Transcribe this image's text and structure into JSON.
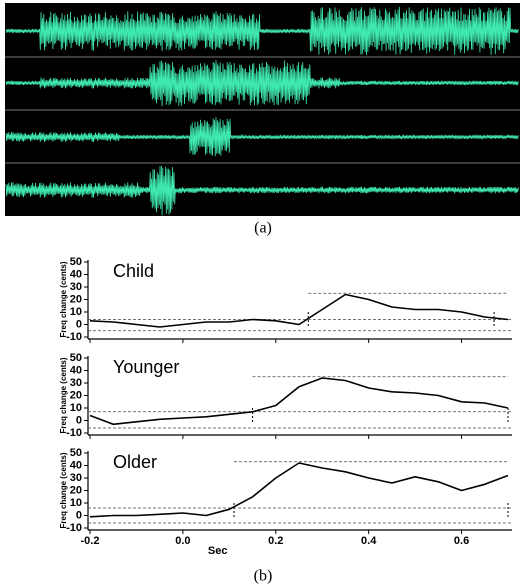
{
  "panel_labels": [
    "(a)",
    "(b)"
  ],
  "chart_data": [
    {
      "type": "line",
      "title": "Child",
      "ylabel": "Freq change (cents)",
      "x": [
        -0.2,
        -0.15,
        -0.1,
        -0.05,
        0,
        0.05,
        0.1,
        0.15,
        0.2,
        0.25,
        0.3,
        0.35,
        0.4,
        0.45,
        0.5,
        0.55,
        0.6,
        0.65,
        0.7
      ],
      "series": [
        {
          "color": "#000000",
          "values": [
            3,
            2,
            0,
            -2,
            0,
            2,
            2,
            4,
            3,
            0,
            12,
            24,
            20,
            14,
            12,
            12,
            10,
            6,
            4
          ]
        }
      ],
      "reference_lines": [
        {
          "y": 4
        },
        {
          "y": -5
        },
        {
          "y": 25,
          "x": [
            0.27,
            0.7
          ]
        }
      ],
      "markers": [
        0.27,
        0.67
      ],
      "xlim": [
        -0.2,
        0.7
      ],
      "ylim": [
        -10,
        50
      ],
      "yticks": [
        -10,
        0,
        10,
        20,
        30,
        40,
        50
      ]
    },
    {
      "type": "line",
      "title": "Younger",
      "ylabel": "Freq change (cents)",
      "x": [
        -0.2,
        -0.15,
        -0.1,
        -0.05,
        0,
        0.05,
        0.1,
        0.15,
        0.2,
        0.25,
        0.3,
        0.35,
        0.4,
        0.45,
        0.5,
        0.55,
        0.6,
        0.65,
        0.7
      ],
      "series": [
        {
          "color": "#000000",
          "values": [
            4,
            -3,
            -1,
            1,
            2,
            3,
            5,
            7,
            12,
            27,
            34,
            32,
            26,
            23,
            22,
            20,
            15,
            14,
            10
          ]
        }
      ],
      "reference_lines": [
        {
          "y": 7
        },
        {
          "y": -6
        },
        {
          "y": 35,
          "x": [
            0.15,
            0.7
          ]
        }
      ],
      "markers": [
        0.15,
        0.7
      ],
      "xlim": [
        -0.2,
        0.7
      ],
      "ylim": [
        -10,
        50
      ],
      "yticks": [
        -10,
        0,
        10,
        20,
        30,
        40,
        50
      ]
    },
    {
      "type": "line",
      "title": "Older",
      "ylabel": "Freq change (cents)",
      "xlabel": "Sec",
      "x": [
        -0.2,
        -0.15,
        -0.1,
        -0.05,
        0,
        0.05,
        0.1,
        0.15,
        0.2,
        0.25,
        0.3,
        0.35,
        0.4,
        0.45,
        0.5,
        0.55,
        0.6,
        0.65,
        0.7
      ],
      "series": [
        {
          "color": "#000000",
          "values": [
            -1,
            0,
            0,
            1,
            2,
            0,
            5,
            15,
            30,
            42,
            38,
            35,
            30,
            26,
            31,
            27,
            20,
            25,
            32
          ]
        }
      ],
      "reference_lines": [
        {
          "y": 6
        },
        {
          "y": -6
        },
        {
          "y": 43,
          "x": [
            0.11,
            0.7
          ]
        }
      ],
      "markers": [
        0.11,
        0.7
      ],
      "xlim": [
        -0.2,
        0.7
      ],
      "ylim": [
        -10,
        50
      ],
      "yticks": [
        -10,
        0,
        10,
        20,
        30,
        40,
        50
      ],
      "xticks": [
        -0.2,
        {
          "value": 0,
          "label": "0.0"
        },
        0.2,
        0.4,
        0.6
      ]
    }
  ]
}
